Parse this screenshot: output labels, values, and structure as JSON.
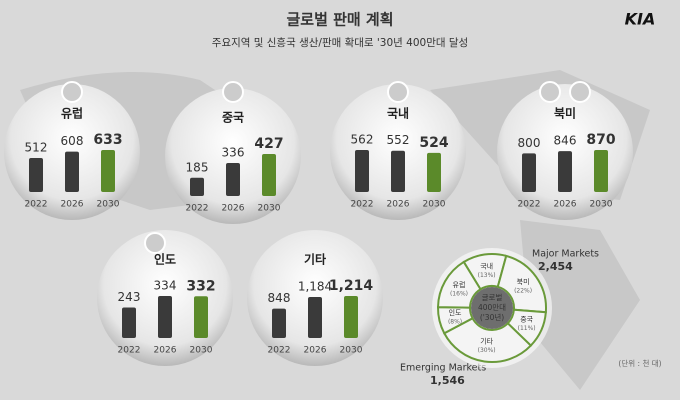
{
  "header": {
    "title": "글로벌 판매 계획",
    "subtitle": "주요지역 및 신흥국 생산/판매 확대로 '30년 400만대 달성",
    "logo": "KIA"
  },
  "chart_data": [
    {
      "type": "bar",
      "title": "유럽",
      "categories": [
        "2022",
        "2026",
        "2030"
      ],
      "values": [
        512,
        608,
        633
      ],
      "colors": [
        "#3a3a3a",
        "#3a3a3a",
        "#5b8a2a"
      ],
      "label_colors": [
        "#333333",
        "#333333",
        "#c9a227"
      ]
    },
    {
      "type": "bar",
      "title": "중국",
      "categories": [
        "2022",
        "2026",
        "2030"
      ],
      "values": [
        185,
        336,
        427
      ],
      "colors": [
        "#3a3a3a",
        "#3a3a3a",
        "#5b8a2a"
      ],
      "label_colors": [
        "#333333",
        "#333333",
        "#c9a227"
      ]
    },
    {
      "type": "bar",
      "title": "국내",
      "categories": [
        "2022",
        "2026",
        "2030"
      ],
      "values": [
        562,
        552,
        524
      ],
      "colors": [
        "#3a3a3a",
        "#3a3a3a",
        "#5b8a2a"
      ],
      "label_colors": [
        "#333333",
        "#333333",
        "#c9a227"
      ]
    },
    {
      "type": "bar",
      "title": "북미",
      "categories": [
        "2022",
        "2026",
        "2030"
      ],
      "values": [
        800,
        846,
        870
      ],
      "colors": [
        "#3a3a3a",
        "#3a3a3a",
        "#5b8a2a"
      ],
      "label_colors": [
        "#333333",
        "#333333",
        "#c9a227"
      ]
    },
    {
      "type": "bar",
      "title": "인도",
      "categories": [
        "2022",
        "2026",
        "2030"
      ],
      "values": [
        243,
        334,
        332
      ],
      "colors": [
        "#3a3a3a",
        "#3a3a3a",
        "#5b8a2a"
      ],
      "label_colors": [
        "#333333",
        "#333333",
        "#c9a227"
      ]
    },
    {
      "type": "bar",
      "title": "기타",
      "categories": [
        "2022",
        "2026",
        "2030"
      ],
      "values": [
        848,
        1184,
        1214
      ],
      "value_labels": [
        "848",
        "1,184",
        "1,214"
      ],
      "colors": [
        "#3a3a3a",
        "#3a3a3a",
        "#5b8a2a"
      ],
      "label_colors": [
        "#333333",
        "#333333",
        "#c9a227"
      ]
    },
    {
      "type": "pie",
      "title": [
        "글로벌",
        "400만대",
        "('30년)"
      ],
      "categories": [
        "국내",
        "북미",
        "중국",
        "기타",
        "인도",
        "유럽"
      ],
      "values": [
        13,
        22,
        11,
        30,
        8,
        16
      ],
      "value_labels": [
        "(13%)",
        "(22%)",
        "(11%)",
        "(30%)",
        "(8%)",
        "(16%)"
      ],
      "color": "#f4f4f4",
      "edge_color": "#6a9a3a"
    }
  ],
  "annotations": {
    "major_label": "Major Markets",
    "major_value": "2,454",
    "emerging_label": "Emerging Markets",
    "emerging_value": "1,546",
    "unit": "(단위 : 천 대)"
  }
}
